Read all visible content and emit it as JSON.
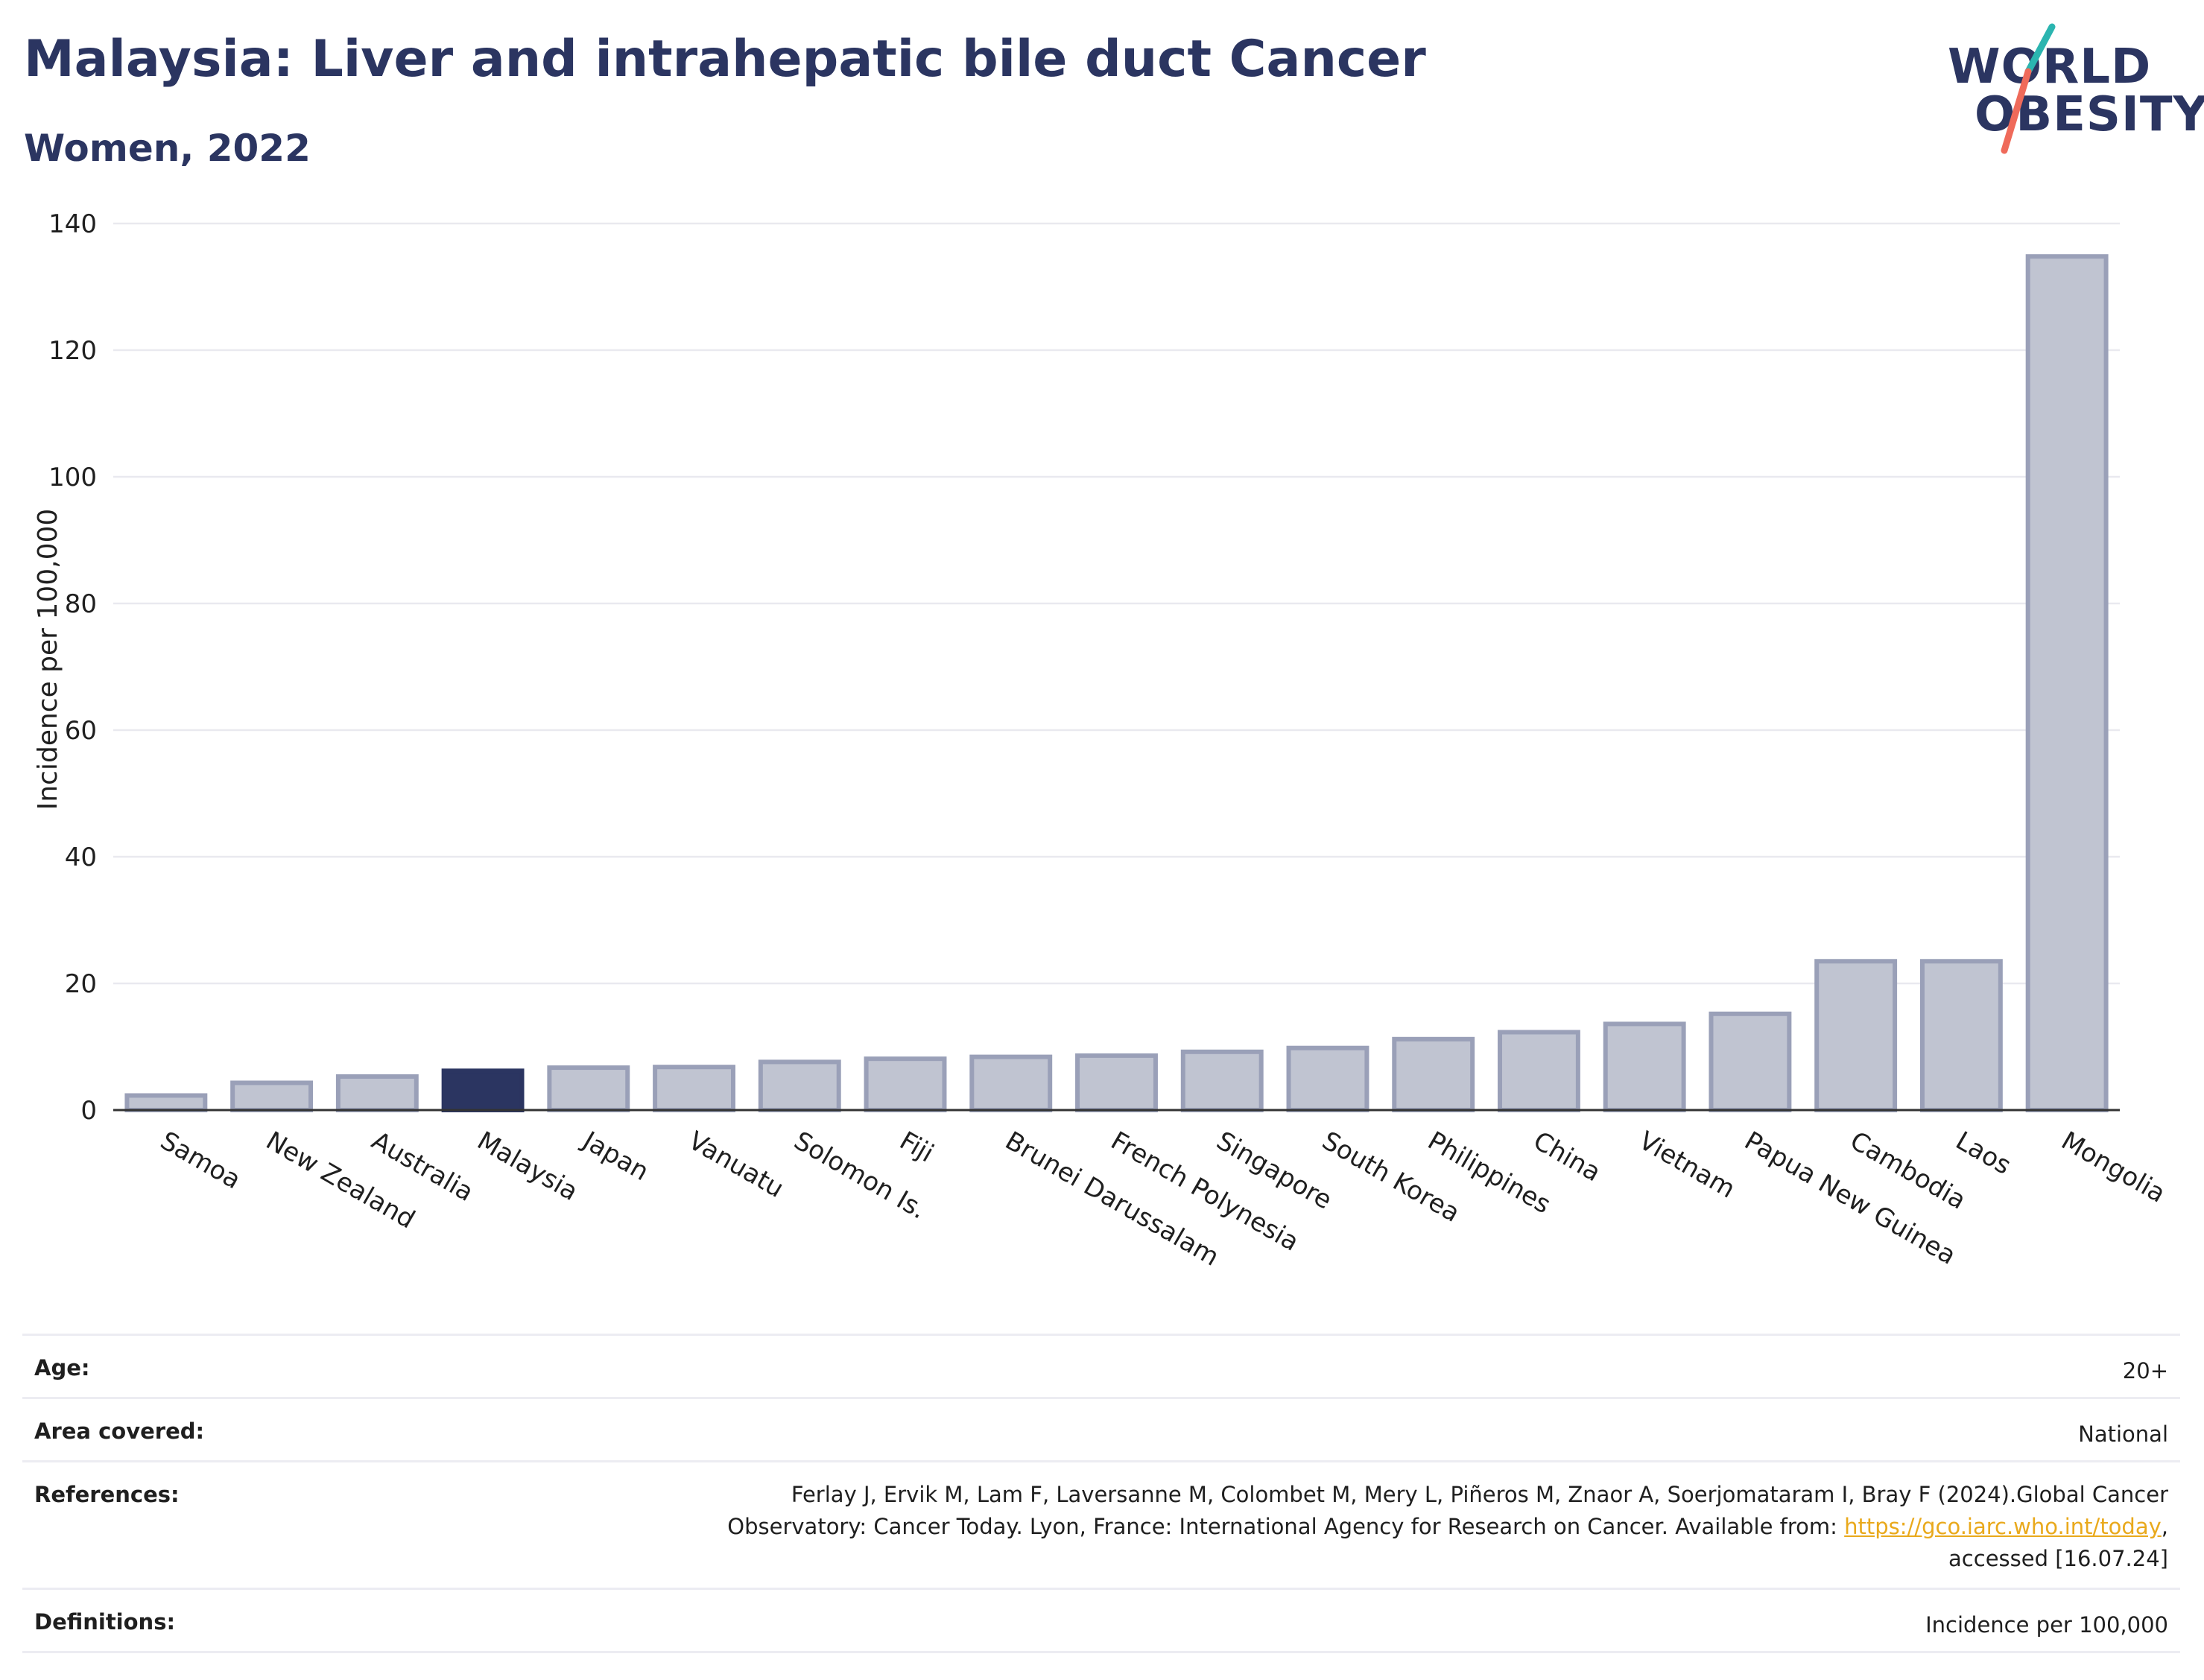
{
  "header": {
    "title": "Malaysia: Liver and intrahepatic bile duct Cancer",
    "subtitle": "Women, 2022"
  },
  "logo": {
    "line1": "WORLD",
    "line2": "OBESITY",
    "colors": {
      "text": "#2b3561",
      "slash_top": "#2bb5b0",
      "slash_bottom": "#ef6a5a"
    }
  },
  "chart_data": {
    "type": "bar",
    "ylabel": "Incidence per 100,000",
    "xlabel": "",
    "ylim": [
      0,
      140
    ],
    "yticks": [
      0,
      20,
      40,
      60,
      80,
      100,
      120,
      140
    ],
    "grid": true,
    "categories": [
      "Samoa",
      "New Zealand",
      "Australia",
      "Malaysia",
      "Japan",
      "Vanuatu",
      "Solomon Is.",
      "Fiji",
      "Brunei Darussalam",
      "French Polynesia",
      "Singapore",
      "South Korea",
      "Philippines",
      "China",
      "Vietnam",
      "Papua New Guinea",
      "Cambodia",
      "Laos",
      "Mongolia"
    ],
    "values": [
      2.3,
      4.3,
      5.3,
      6.2,
      6.7,
      6.8,
      7.6,
      8.1,
      8.4,
      8.6,
      9.2,
      9.8,
      11.2,
      12.3,
      13.6,
      15.2,
      23.5,
      23.5,
      134.8
    ],
    "highlight": "Malaysia",
    "colors": {
      "bar": "#c0c4d1",
      "bar_edge": "#9aa0b8",
      "highlight": "#2b3561",
      "grid": "#e9e9ef",
      "axis": "#333333"
    }
  },
  "info_table": {
    "age": {
      "label": "Age:",
      "value": "20+"
    },
    "area": {
      "label": "Area covered:",
      "value": "National"
    },
    "references": {
      "label": "References:",
      "line1": "Ferlay J, Ervik M, Lam F, Laversanne M, Colombet M, Mery L, Piñeros M, Znaor A, Soerjomataram I, Bray F (2024).Global Cancer",
      "line2_prefix": "Observatory: Cancer Today. Lyon, France: International Agency for Research on Cancer. Available from: ",
      "link": "https://gco.iarc.who.int/today",
      "line2_suffix": ",",
      "line3": "accessed [16.07.24]"
    },
    "definitions": {
      "label": "Definitions:",
      "value": "Incidence per 100,000"
    }
  }
}
